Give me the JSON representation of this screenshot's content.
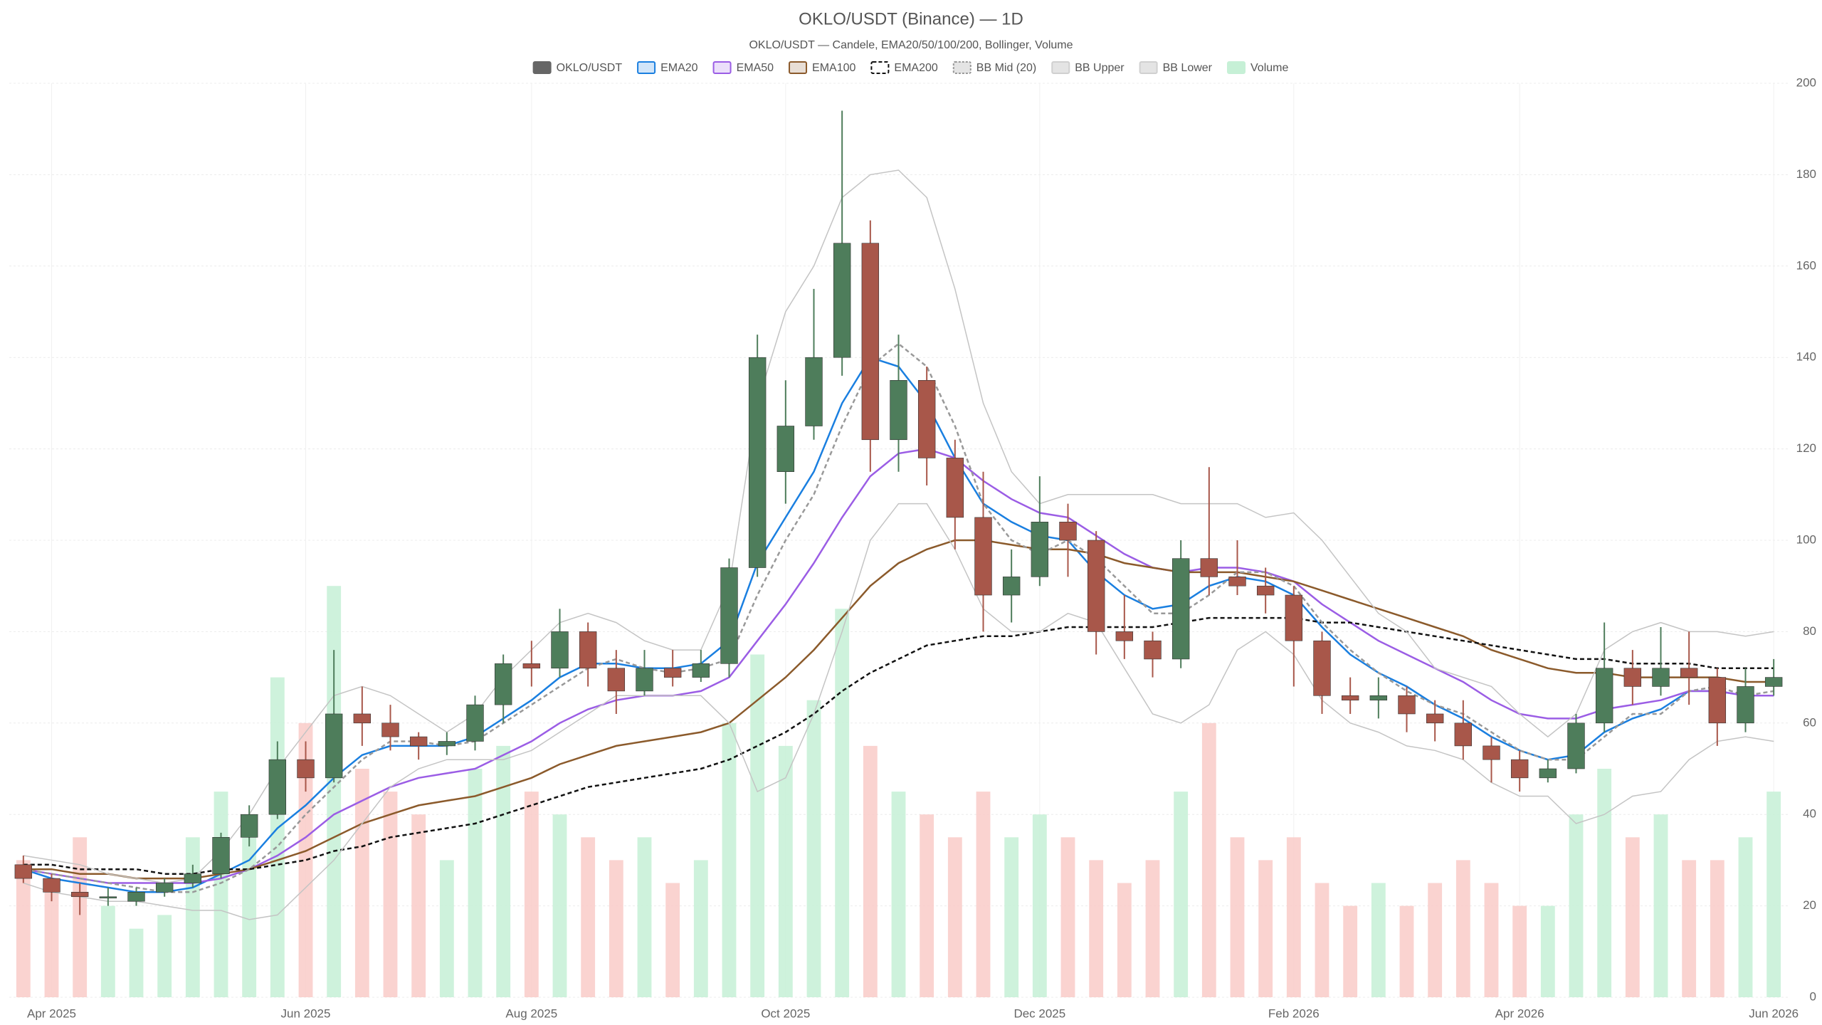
{
  "chart_data": {
    "type": "candlestick",
    "title": "OKLO/USDT (Binance) — 1D",
    "subtitle": "OKLO/USDT — Candele, EMA20/50/100/200, Bollinger, Volume",
    "categories": [
      null,
      "Apr 2025",
      null,
      null,
      null,
      null,
      null,
      null,
      null,
      null,
      "Jun 2025",
      null,
      null,
      null,
      null,
      null,
      null,
      null,
      "Aug 2025",
      null,
      null,
      null,
      null,
      null,
      null,
      null,
      null,
      "Oct 2025",
      null,
      null,
      null,
      null,
      null,
      null,
      null,
      null,
      "Dec 2025",
      null,
      null,
      null,
      null,
      null,
      null,
      null,
      null,
      "Feb 2026",
      null,
      null,
      null,
      null,
      null,
      null,
      null,
      "Apr 2026",
      null,
      null,
      null,
      null,
      null,
      null,
      null,
      null,
      "Jun 2026"
    ],
    "ylim": [
      0,
      200
    ],
    "yticks": [
      0,
      20,
      40,
      60,
      80,
      100,
      120,
      140,
      160,
      180,
      200
    ],
    "y2lim": [
      0,
      200
    ],
    "grid": true,
    "series": [
      {
        "name": "OKLO/USDT",
        "type": "candlestick",
        "color": "#666666",
        "up_color": "#4e7d5b",
        "down_color": "#a8574a",
        "open": [
          29,
          26,
          23,
          22,
          21,
          23,
          25,
          27,
          35,
          40,
          52,
          48,
          62,
          60,
          57,
          55,
          56,
          64,
          73,
          72,
          80,
          72,
          67,
          72,
          70,
          73,
          94,
          115,
          125,
          140,
          165,
          122,
          135,
          118,
          105,
          88,
          92,
          104,
          100,
          80,
          78,
          74,
          96,
          92,
          90,
          88,
          78,
          66,
          65,
          66,
          62,
          60,
          55,
          52,
          48,
          50,
          60,
          72,
          68,
          72,
          70,
          60,
          68
        ],
        "high": [
          31,
          27,
          25,
          24,
          24,
          26,
          29,
          36,
          42,
          56,
          56,
          76,
          68,
          64,
          58,
          58,
          66,
          75,
          78,
          85,
          82,
          76,
          76,
          76,
          76,
          96,
          145,
          135,
          155,
          194,
          170,
          145,
          138,
          122,
          115,
          98,
          114,
          108,
          102,
          88,
          80,
          100,
          116,
          100,
          94,
          90,
          80,
          70,
          70,
          68,
          65,
          65,
          57,
          54,
          52,
          62,
          82,
          76,
          81,
          80,
          72,
          72,
          74
        ],
        "low": [
          25,
          21,
          18,
          20,
          20,
          22,
          24,
          26,
          33,
          39,
          45,
          47,
          55,
          54,
          52,
          53,
          54,
          60,
          68,
          70,
          68,
          62,
          66,
          68,
          69,
          70,
          92,
          108,
          122,
          136,
          115,
          115,
          112,
          98,
          80,
          82,
          90,
          92,
          75,
          74,
          70,
          72,
          88,
          88,
          84,
          68,
          62,
          62,
          61,
          58,
          56,
          52,
          47,
          45,
          47,
          49,
          58,
          64,
          66,
          64,
          55,
          58,
          66
        ],
        "close": [
          26,
          23,
          22,
          22,
          23,
          25,
          27,
          35,
          40,
          52,
          48,
          62,
          60,
          57,
          55,
          56,
          64,
          73,
          72,
          80,
          72,
          67,
          72,
          70,
          73,
          94,
          140,
          125,
          140,
          165,
          122,
          135,
          118,
          105,
          88,
          92,
          104,
          100,
          80,
          78,
          74,
          96,
          92,
          90,
          88,
          78,
          66,
          65,
          66,
          62,
          60,
          55,
          52,
          48,
          50,
          60,
          72,
          68,
          72,
          70,
          60,
          68,
          70
        ]
      },
      {
        "name": "EMA20",
        "type": "line",
        "color": "#1a7fe0",
        "values": [
          28,
          26,
          25,
          24,
          23,
          23,
          24,
          27,
          30,
          37,
          42,
          48,
          53,
          55,
          55,
          55,
          57,
          61,
          65,
          70,
          73,
          73,
          72,
          72,
          73,
          78,
          95,
          105,
          115,
          130,
          140,
          138,
          130,
          118,
          108,
          104,
          101,
          100,
          93,
          88,
          85,
          86,
          90,
          92,
          91,
          88,
          81,
          75,
          71,
          68,
          64,
          61,
          57,
          54,
          52,
          53,
          58,
          61,
          63,
          67,
          67,
          66,
          66
        ]
      },
      {
        "name": "EMA50",
        "type": "line",
        "color": "#9b5de5",
        "values": [
          28,
          27,
          26,
          25,
          25,
          25,
          25,
          26,
          28,
          31,
          35,
          40,
          43,
          46,
          48,
          49,
          50,
          53,
          56,
          60,
          63,
          65,
          66,
          66,
          67,
          70,
          78,
          86,
          95,
          105,
          114,
          119,
          120,
          118,
          113,
          109,
          106,
          105,
          101,
          97,
          94,
          93,
          94,
          94,
          93,
          91,
          86,
          82,
          78,
          75,
          72,
          69,
          65,
          62,
          61,
          61,
          63,
          64,
          65,
          67,
          67,
          66,
          66
        ]
      },
      {
        "name": "EMA100",
        "type": "line",
        "color": "#8b5a2b",
        "values": [
          28,
          28,
          27,
          27,
          26,
          26,
          26,
          27,
          28,
          30,
          32,
          35,
          38,
          40,
          42,
          43,
          44,
          46,
          48,
          51,
          53,
          55,
          56,
          57,
          58,
          60,
          65,
          70,
          76,
          83,
          90,
          95,
          98,
          100,
          100,
          99,
          98,
          98,
          97,
          95,
          94,
          93,
          93,
          93,
          92,
          91,
          89,
          87,
          85,
          83,
          81,
          79,
          76,
          74,
          72,
          71,
          71,
          70,
          70,
          70,
          70,
          69,
          69
        ]
      },
      {
        "name": "EMA200",
        "type": "line",
        "color": "#111111",
        "dashed": true,
        "values": [
          29,
          29,
          28,
          28,
          28,
          27,
          27,
          28,
          28,
          29,
          30,
          32,
          33,
          35,
          36,
          37,
          38,
          40,
          42,
          44,
          46,
          47,
          48,
          49,
          50,
          52,
          55,
          58,
          62,
          67,
          71,
          74,
          77,
          78,
          79,
          79,
          80,
          81,
          81,
          81,
          81,
          82,
          83,
          83,
          83,
          83,
          82,
          82,
          81,
          80,
          79,
          78,
          77,
          76,
          75,
          74,
          74,
          73,
          73,
          73,
          72,
          72,
          72
        ]
      },
      {
        "name": "BB Mid (20)",
        "type": "line",
        "color": "#999999",
        "dashed": true,
        "values": [
          28,
          27,
          26,
          25,
          24,
          23,
          23,
          25,
          28,
          33,
          40,
          46,
          52,
          56,
          56,
          55,
          56,
          60,
          64,
          68,
          72,
          74,
          72,
          71,
          72,
          74,
          88,
          100,
          110,
          125,
          138,
          143,
          138,
          125,
          108,
          100,
          97,
          100,
          96,
          90,
          84,
          84,
          88,
          93,
          93,
          90,
          82,
          76,
          71,
          67,
          64,
          62,
          58,
          54,
          52,
          52,
          57,
          62,
          62,
          67,
          68,
          66,
          67
        ]
      },
      {
        "name": "BB Upper",
        "type": "line",
        "color": "#c4c4c4",
        "values": [
          31,
          30,
          29,
          27,
          26,
          25,
          26,
          32,
          40,
          50,
          58,
          66,
          68,
          66,
          62,
          58,
          62,
          70,
          76,
          82,
          84,
          82,
          78,
          76,
          76,
          90,
          130,
          150,
          160,
          175,
          180,
          181,
          175,
          155,
          130,
          115,
          108,
          110,
          110,
          110,
          110,
          108,
          108,
          108,
          105,
          106,
          100,
          92,
          84,
          80,
          72,
          70,
          68,
          62,
          57,
          62,
          76,
          80,
          82,
          80,
          80,
          79,
          80
        ]
      },
      {
        "name": "BB Lower",
        "type": "line",
        "color": "#c4c4c4",
        "values": [
          25,
          23,
          22,
          21,
          21,
          20,
          19,
          19,
          17,
          18,
          24,
          30,
          38,
          46,
          50,
          52,
          52,
          52,
          54,
          58,
          62,
          66,
          66,
          66,
          66,
          60,
          45,
          48,
          62,
          80,
          100,
          108,
          108,
          98,
          85,
          80,
          80,
          84,
          82,
          72,
          62,
          60,
          64,
          76,
          80,
          75,
          65,
          60,
          58,
          55,
          54,
          52,
          47,
          44,
          44,
          38,
          40,
          44,
          45,
          52,
          56,
          57,
          56
        ]
      },
      {
        "name": "Volume",
        "type": "bar",
        "axis": "y2",
        "color": "#c6f0d6",
        "up_color": "#c6f0d6",
        "down_color": "#f9cbc8",
        "values": [
          30,
          25,
          35,
          20,
          15,
          18,
          35,
          45,
          40,
          70,
          60,
          90,
          50,
          45,
          40,
          30,
          50,
          55,
          45,
          40,
          35,
          30,
          35,
          25,
          30,
          60,
          75,
          55,
          65,
          85,
          55,
          45,
          40,
          35,
          45,
          35,
          40,
          35,
          30,
          25,
          30,
          45,
          60,
          35,
          30,
          35,
          25,
          20,
          25,
          20,
          25,
          30,
          25,
          20,
          20,
          40,
          50,
          35,
          40,
          30,
          30,
          35,
          45
        ]
      }
    ]
  }
}
